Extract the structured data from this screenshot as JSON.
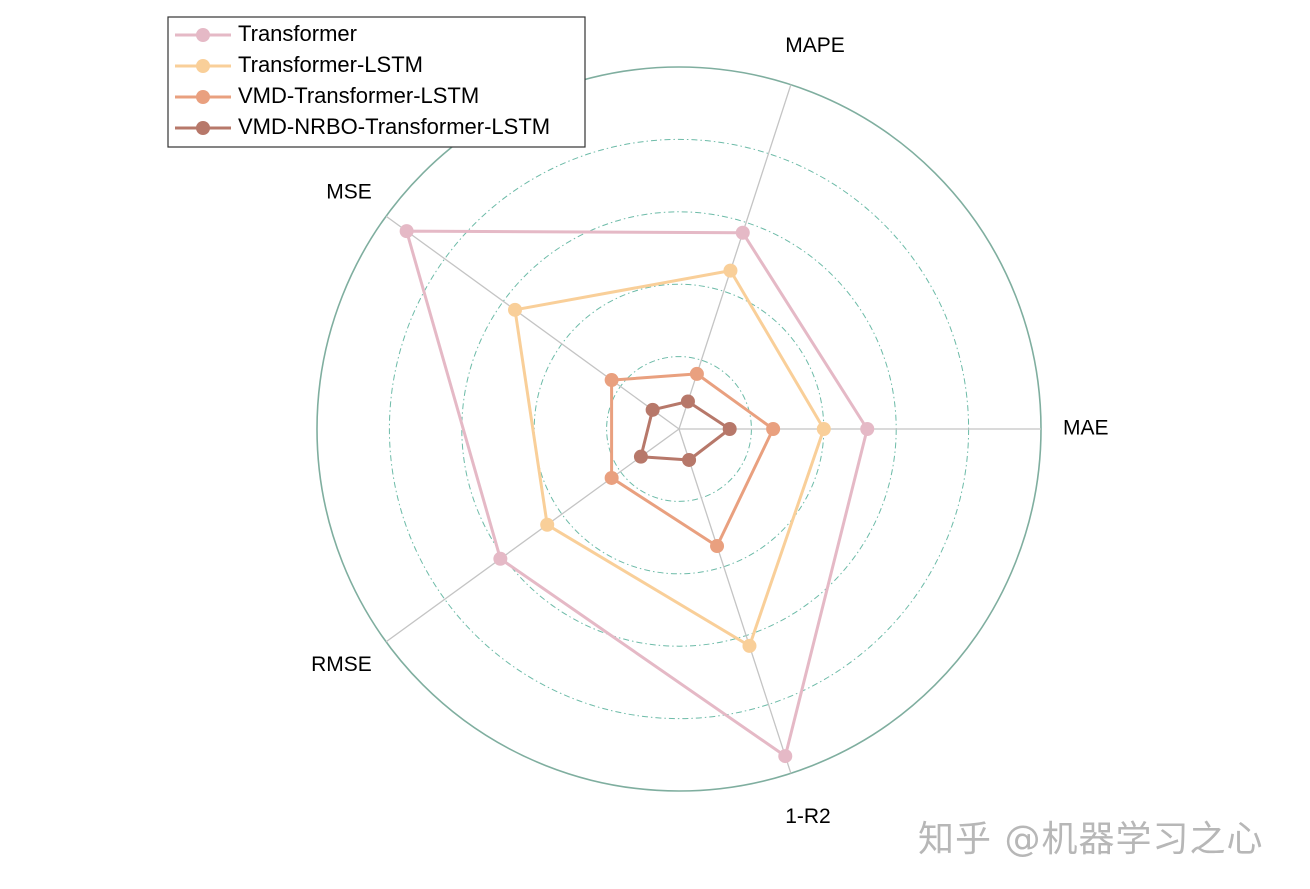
{
  "watermark": "知乎 @机器学习之心",
  "chart_data": {
    "type": "radar",
    "axes": [
      "MAE",
      "MAPE",
      "MSE",
      "RMSE",
      "1-R2"
    ],
    "range": [
      0,
      1
    ],
    "grid": true,
    "grid_levels": [
      0.2,
      0.4,
      0.6,
      0.8,
      1.0
    ],
    "legend_position": "top-left",
    "series": [
      {
        "name": "Transformer",
        "color": "#e5b9c6",
        "values": [
          0.52,
          0.57,
          0.93,
          0.61,
          0.95
        ]
      },
      {
        "name": "Transformer-LSTM",
        "color": "#f9cf99",
        "values": [
          0.4,
          0.46,
          0.56,
          0.45,
          0.63
        ]
      },
      {
        "name": "VMD-Transformer-LSTM",
        "color": "#e9a07f",
        "values": [
          0.26,
          0.16,
          0.23,
          0.23,
          0.34
        ]
      },
      {
        "name": "VMD-NRBO-Transformer-LSTM",
        "color": "#b7786a",
        "values": [
          0.14,
          0.08,
          0.09,
          0.13,
          0.09
        ]
      }
    ]
  }
}
